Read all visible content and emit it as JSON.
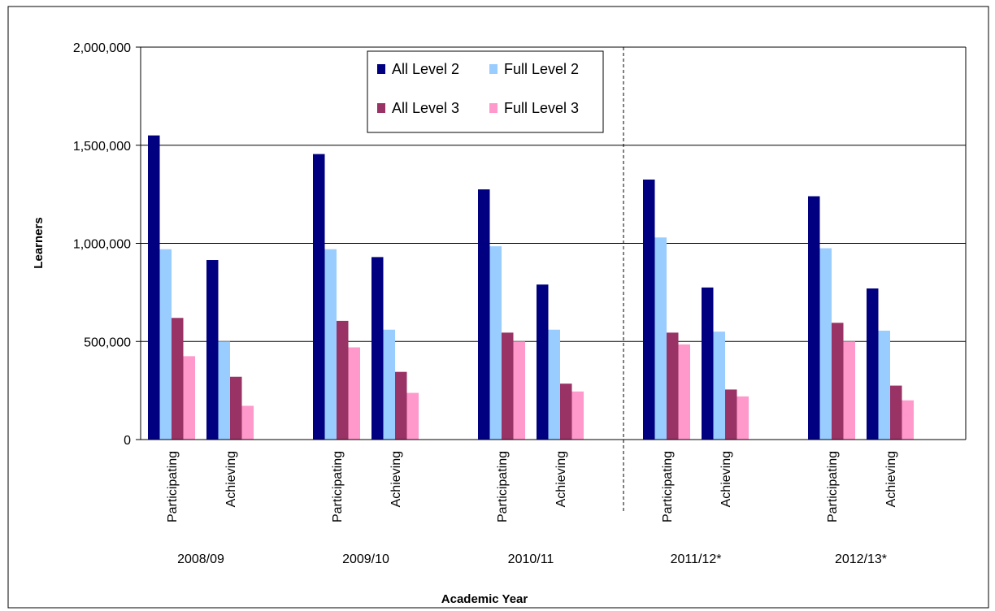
{
  "chart_data": {
    "type": "bar",
    "xlabel": "Academic Year",
    "ylabel": "Learners",
    "ylim": [
      0,
      2000000
    ],
    "yticks": [
      0,
      500000,
      1000000,
      1500000,
      2000000
    ],
    "ytick_labels": [
      "0",
      "500,000",
      "1,000,000",
      "1,500,000",
      "2,000,000"
    ],
    "grid": true,
    "legend_position": "top-center",
    "groups": [
      "2008/09",
      "2009/10",
      "2010/11",
      "2011/12*",
      "2012/13*"
    ],
    "subcategories": [
      "Participating",
      "Achieving"
    ],
    "separator_after_group": "2010/11",
    "series": [
      {
        "name": "All Level 2",
        "color": "#000080",
        "values": [
          [
            1550000,
            915000
          ],
          [
            1455000,
            930000
          ],
          [
            1275000,
            790000
          ],
          [
            1325000,
            775000
          ],
          [
            1240000,
            770000
          ]
        ]
      },
      {
        "name": "Full Level 2",
        "color": "#99ccff",
        "values": [
          [
            970000,
            500000
          ],
          [
            970000,
            560000
          ],
          [
            985000,
            560000
          ],
          [
            1030000,
            550000
          ],
          [
            975000,
            555000
          ]
        ]
      },
      {
        "name": "All Level 3",
        "color": "#993366",
        "values": [
          [
            620000,
            320000
          ],
          [
            605000,
            345000
          ],
          [
            545000,
            285000
          ],
          [
            545000,
            255000
          ],
          [
            595000,
            275000
          ]
        ]
      },
      {
        "name": "Full Level 3",
        "color": "#ff99cc",
        "values": [
          [
            425000,
            172000
          ],
          [
            470000,
            238000
          ],
          [
            500000,
            245000
          ],
          [
            485000,
            220000
          ],
          [
            500000,
            200000
          ]
        ]
      }
    ]
  }
}
